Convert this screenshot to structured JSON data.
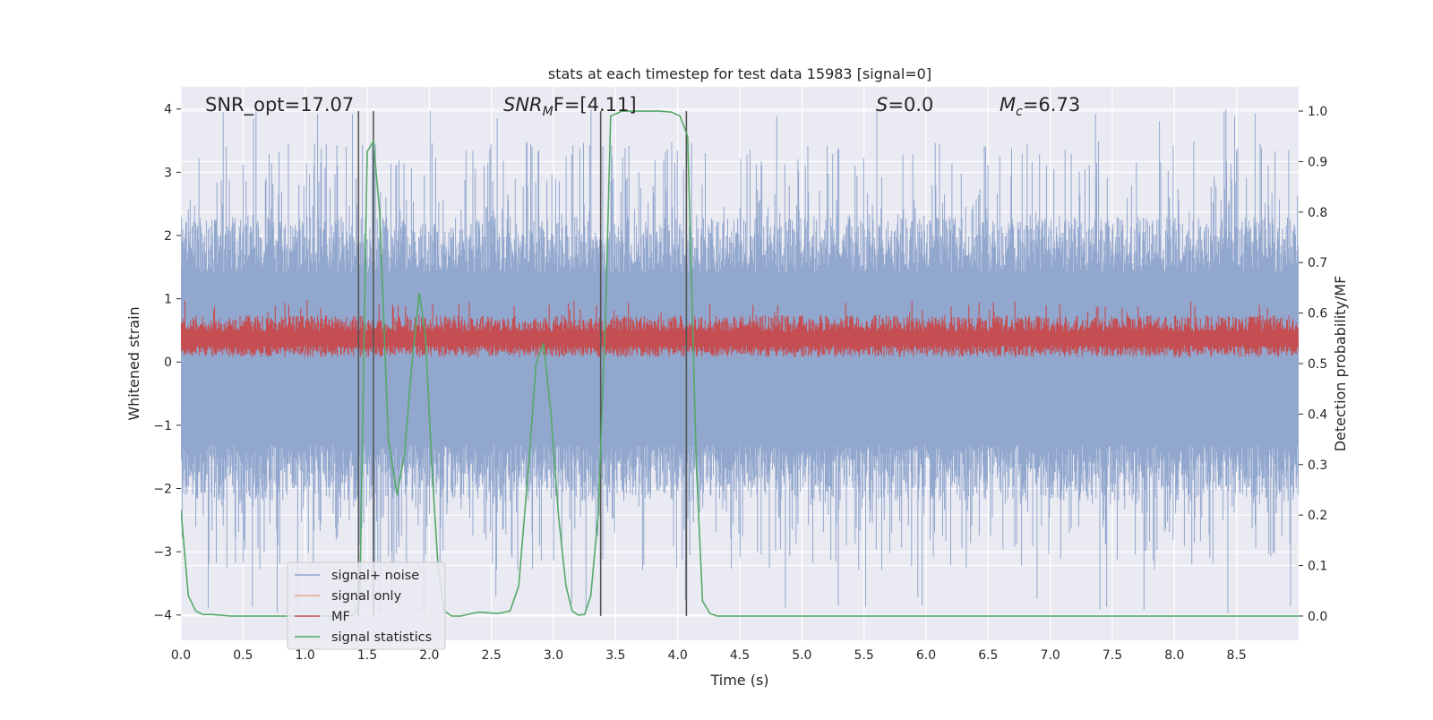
{
  "chart_data": {
    "type": "line",
    "title": "stats at each timestep for test data 15983 [signal=0]",
    "xlabel": "Time (s)",
    "ylabel": "Whitened strain",
    "y2label": "Detection probability/MF",
    "xlim": [
      0,
      9
    ],
    "ylim": [
      -4.4,
      4.35
    ],
    "y2lim": [
      -0.048,
      1.048
    ],
    "xticks": [
      "0.0",
      "0.5",
      "1.0",
      "1.5",
      "2.0",
      "2.5",
      "3.0",
      "3.5",
      "4.0",
      "4.5",
      "5.0",
      "5.5",
      "6.0",
      "6.5",
      "7.0",
      "7.5",
      "8.0",
      "8.5"
    ],
    "yticks": [
      "−4",
      "−3",
      "−2",
      "−1",
      "0",
      "1",
      "2",
      "3",
      "4"
    ],
    "y2ticks": [
      "0.0",
      "0.1",
      "0.2",
      "0.3",
      "0.4",
      "0.5",
      "0.6",
      "0.7",
      "0.8",
      "0.9",
      "1.0"
    ],
    "grid": true,
    "legend_position": "lower-left",
    "annotations": {
      "snr_opt": "SNR_opt=17.07",
      "snr_mf_base": "SNR",
      "snr_mf_sub": "M",
      "snr_mf_rest": "F=[4.11]",
      "s_var": "S",
      "s_rest": "=0.0",
      "mc_base": "M",
      "mc_sub": "c",
      "mc_rest": "=6.73"
    },
    "vlines": [
      1.43,
      1.55,
      3.38,
      4.07
    ],
    "series": [
      {
        "name": "signal+ noise",
        "color": "#8da3cb",
        "axis": "left",
        "style": "dense-noise",
        "amplitude_range": [
          -4,
          4
        ]
      },
      {
        "name": "signal only",
        "color": "#e8a58a",
        "axis": "left",
        "values": []
      },
      {
        "name": "MF",
        "color": "#c44e52",
        "axis": "left",
        "style": "dense-noise",
        "range": [
          0.05,
          1.0
        ]
      },
      {
        "name": "signal statistics",
        "color": "#55a868",
        "axis": "right",
        "x": [
          0.0,
          0.06,
          0.12,
          0.18,
          0.25,
          0.4,
          1.35,
          1.4,
          1.44,
          1.5,
          1.55,
          1.6,
          1.67,
          1.74,
          1.8,
          1.86,
          1.92,
          1.97,
          2.02,
          2.07,
          2.12,
          2.18,
          2.25,
          2.4,
          2.55,
          2.65,
          2.72,
          2.8,
          2.86,
          2.92,
          2.98,
          3.04,
          3.1,
          3.15,
          3.2,
          3.25,
          3.3,
          3.36,
          3.42,
          3.46,
          3.55,
          3.7,
          3.85,
          3.95,
          4.02,
          4.08,
          4.15,
          4.2,
          4.26,
          4.32,
          5.0,
          6.0,
          7.0,
          8.0,
          9.0
        ],
        "y": [
          0.21,
          0.04,
          0.01,
          0.003,
          0.003,
          0.0,
          0.0,
          0.003,
          0.03,
          0.92,
          0.94,
          0.8,
          0.35,
          0.24,
          0.32,
          0.5,
          0.64,
          0.55,
          0.3,
          0.1,
          0.01,
          0.0,
          0.0,
          0.008,
          0.005,
          0.01,
          0.06,
          0.3,
          0.5,
          0.54,
          0.4,
          0.2,
          0.06,
          0.01,
          0.002,
          0.003,
          0.04,
          0.2,
          0.6,
          0.99,
          1.0,
          1.0,
          1.0,
          0.998,
          0.99,
          0.95,
          0.3,
          0.03,
          0.005,
          0.0,
          0.0,
          0.0,
          0.0,
          0.0,
          0.0
        ]
      }
    ]
  }
}
